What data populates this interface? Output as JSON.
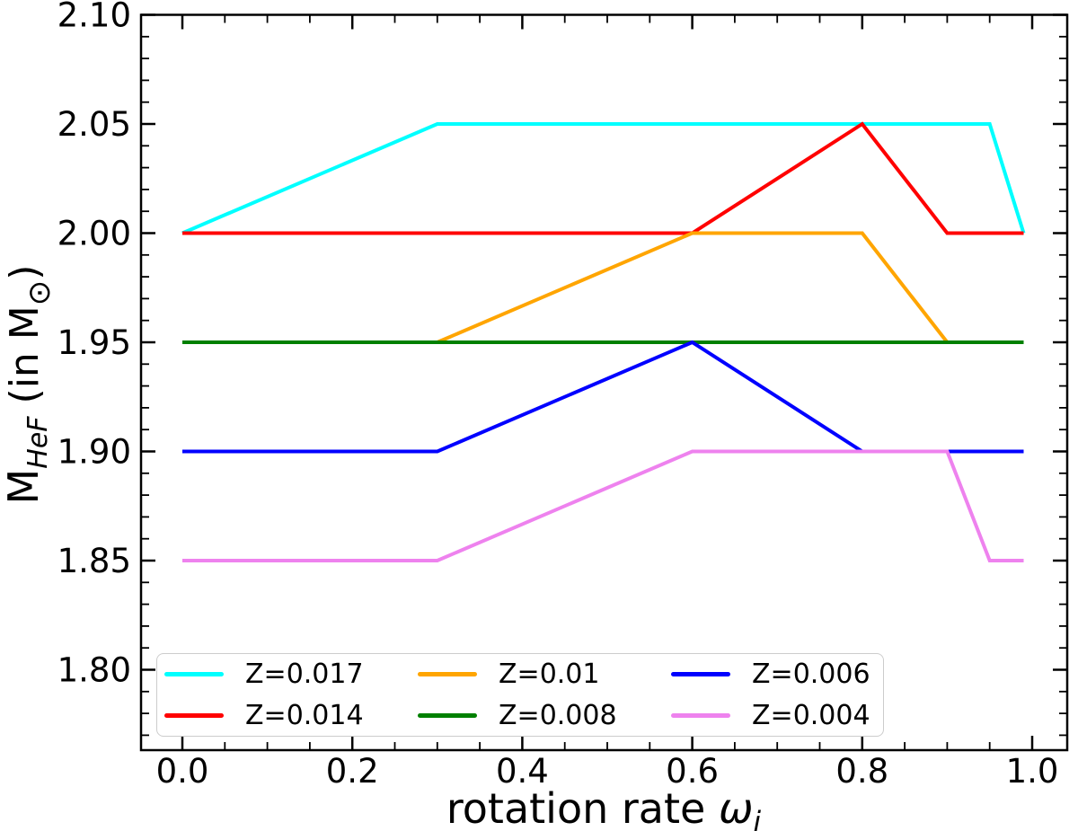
{
  "labels": {
    "xlabel_prefix": "rotation rate ",
    "xlabel_symbol": "ω",
    "xlabel_sub": "i",
    "ylabel_main": "M",
    "ylabel_sub": "HeF",
    "ylabel_mid": " (in M",
    "ylabel_sun": "⊙",
    "ylabel_close": ")"
  },
  "legend": {
    "columns": 3,
    "location": "lower left"
  },
  "chart_data": {
    "type": "line",
    "title": "",
    "xlabel": "rotation rate ω_i",
    "ylabel": "M_HeF (in M_⊙)",
    "xlim": [
      -0.049,
      1.041
    ],
    "ylim": [
      1.763,
      2.1
    ],
    "grid": false,
    "tick_direction": "in",
    "ticks_on_all_sides": true,
    "x_ticks": [
      "0.0",
      "0.2",
      "0.4",
      "0.6",
      "0.8",
      "1.0"
    ],
    "y_ticks": [
      "1.80",
      "1.85",
      "1.90",
      "1.95",
      "2.00",
      "2.05",
      "2.10"
    ],
    "x_minor_step": 0.05,
    "y_minor_step": 0.01,
    "legend_position": "lower left, 3 columns",
    "series": [
      {
        "name": "Z=0.017",
        "color": "#00FFFF",
        "points": [
          [
            0.0,
            2.0
          ],
          [
            0.3,
            2.05
          ],
          [
            0.95,
            2.05
          ],
          [
            0.99,
            2.0
          ]
        ]
      },
      {
        "name": "Z=0.014",
        "color": "#FF0000",
        "points": [
          [
            0.0,
            2.0
          ],
          [
            0.6,
            2.0
          ],
          [
            0.8,
            2.05
          ],
          [
            0.9,
            2.0
          ],
          [
            0.99,
            2.0
          ]
        ]
      },
      {
        "name": "Z=0.01",
        "color": "#FFA500",
        "points": [
          [
            0.0,
            1.95
          ],
          [
            0.3,
            1.95
          ],
          [
            0.6,
            2.0
          ],
          [
            0.8,
            2.0
          ],
          [
            0.9,
            1.95
          ],
          [
            0.99,
            1.95
          ]
        ]
      },
      {
        "name": "Z=0.008",
        "color": "#008000",
        "points": [
          [
            0.0,
            1.95
          ],
          [
            0.99,
            1.95
          ]
        ]
      },
      {
        "name": "Z=0.006",
        "color": "#0000FF",
        "points": [
          [
            0.0,
            1.9
          ],
          [
            0.3,
            1.9
          ],
          [
            0.6,
            1.95
          ],
          [
            0.8,
            1.9
          ],
          [
            0.99,
            1.9
          ]
        ]
      },
      {
        "name": "Z=0.004",
        "color": "#EE82EE",
        "points": [
          [
            0.0,
            1.85
          ],
          [
            0.3,
            1.85
          ],
          [
            0.6,
            1.9
          ],
          [
            0.9,
            1.9
          ],
          [
            0.95,
            1.85
          ],
          [
            0.99,
            1.85
          ]
        ]
      }
    ]
  }
}
